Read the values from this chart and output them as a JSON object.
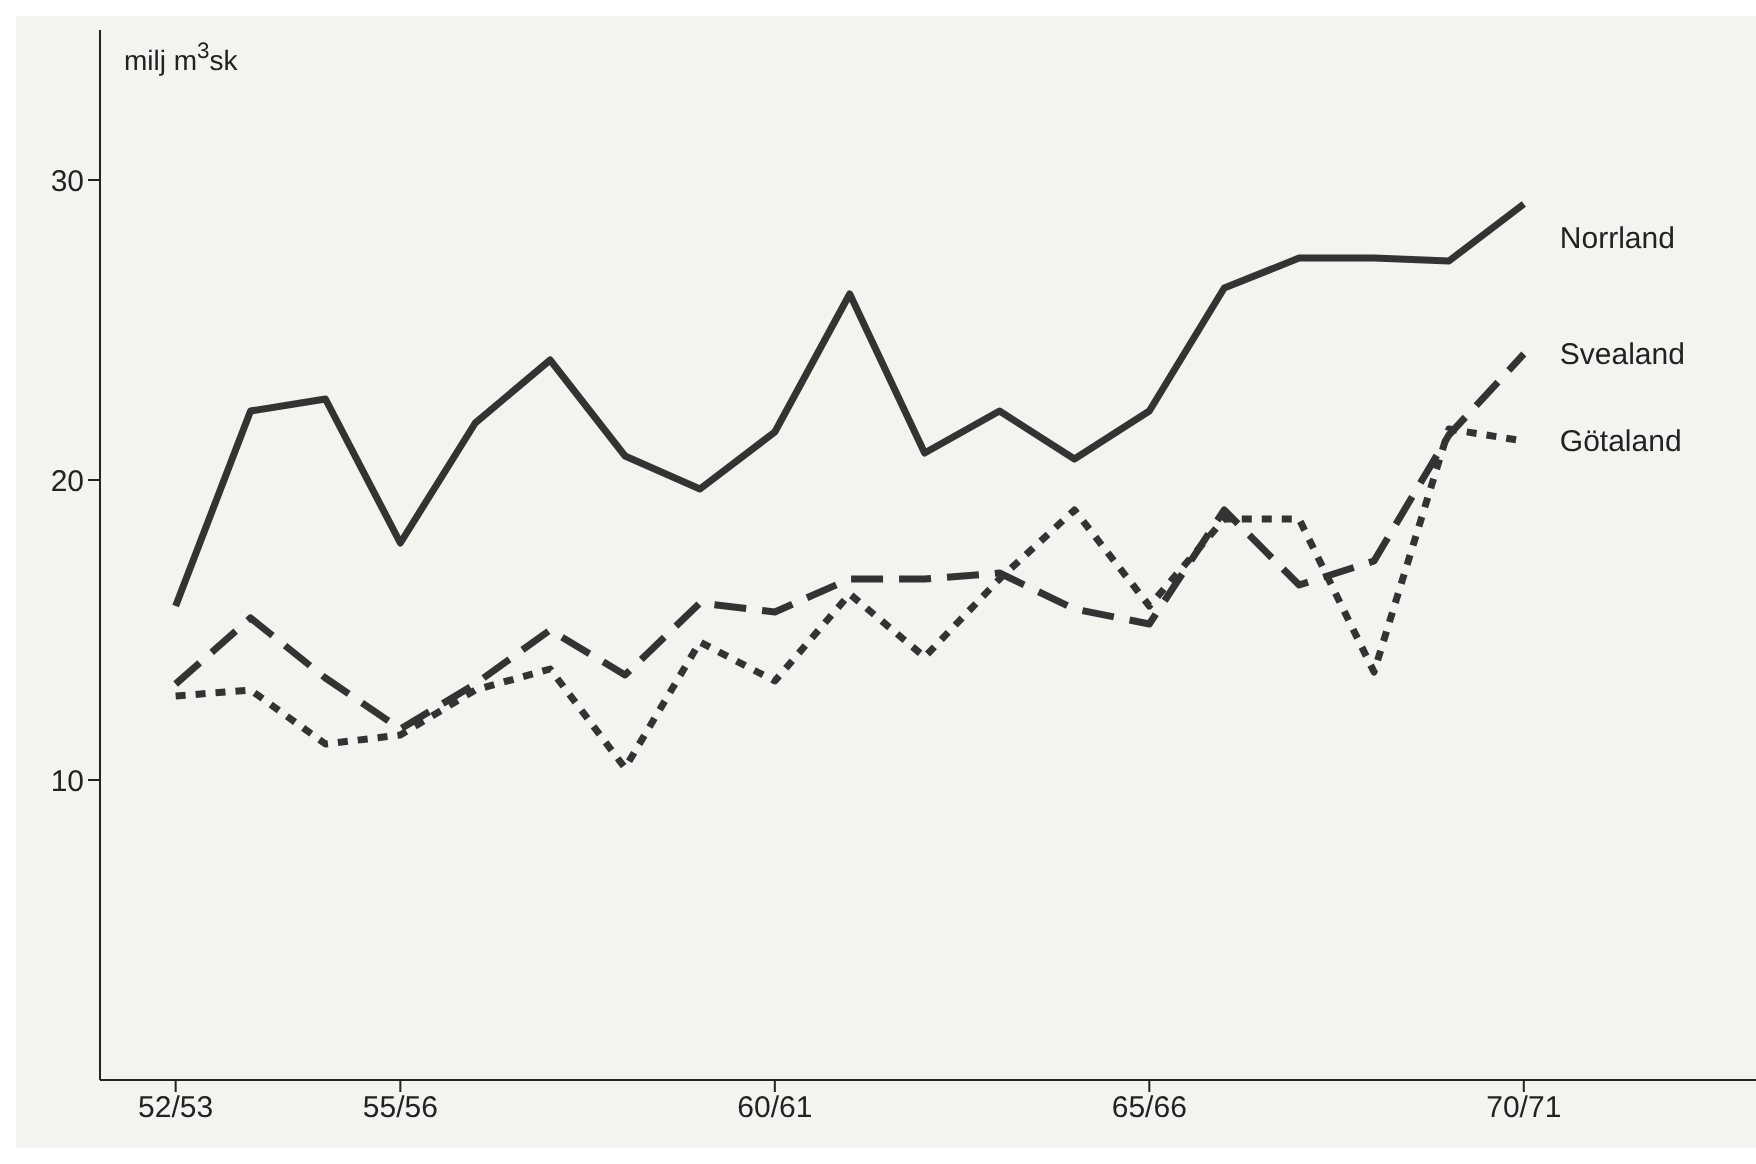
{
  "chart_data": {
    "type": "line",
    "ylabel": "milj m$^{3}$sk",
    "categories": [
      "52/53",
      null,
      null,
      "55/56",
      null,
      null,
      null,
      null,
      "60/61",
      null,
      null,
      null,
      null,
      "65/66",
      null,
      null,
      null,
      null,
      "70/71"
    ],
    "series": [
      {
        "name": "Norrland",
        "color": "#333333",
        "line_style": "solid",
        "values": [
          15.8,
          22.3,
          22.7,
          17.9,
          21.9,
          24.0,
          20.8,
          19.7,
          21.6,
          26.2,
          20.9,
          22.3,
          20.7,
          22.3,
          26.4,
          27.4,
          27.4,
          27.3,
          29.2
        ]
      },
      {
        "name": "Svealand",
        "color": "#333333",
        "line_style": "dashed",
        "values": [
          13.2,
          15.4,
          13.4,
          11.7,
          13.2,
          15.0,
          13.5,
          15.9,
          15.6,
          16.7,
          16.7,
          16.9,
          15.7,
          15.2,
          19.0,
          16.5,
          17.3,
          21.5,
          24.2
        ]
      },
      {
        "name": "Götaland",
        "color": "#333333",
        "line_style": "dotted",
        "values": [
          12.8,
          13.0,
          11.2,
          11.5,
          13.0,
          13.7,
          10.4,
          14.6,
          13.3,
          16.2,
          14.1,
          16.7,
          19.0,
          15.8,
          18.7,
          18.7,
          13.6,
          21.7,
          21.3
        ]
      }
    ],
    "ylim": [
      0,
      35
    ],
    "yticks": [
      10,
      20,
      30
    ]
  }
}
